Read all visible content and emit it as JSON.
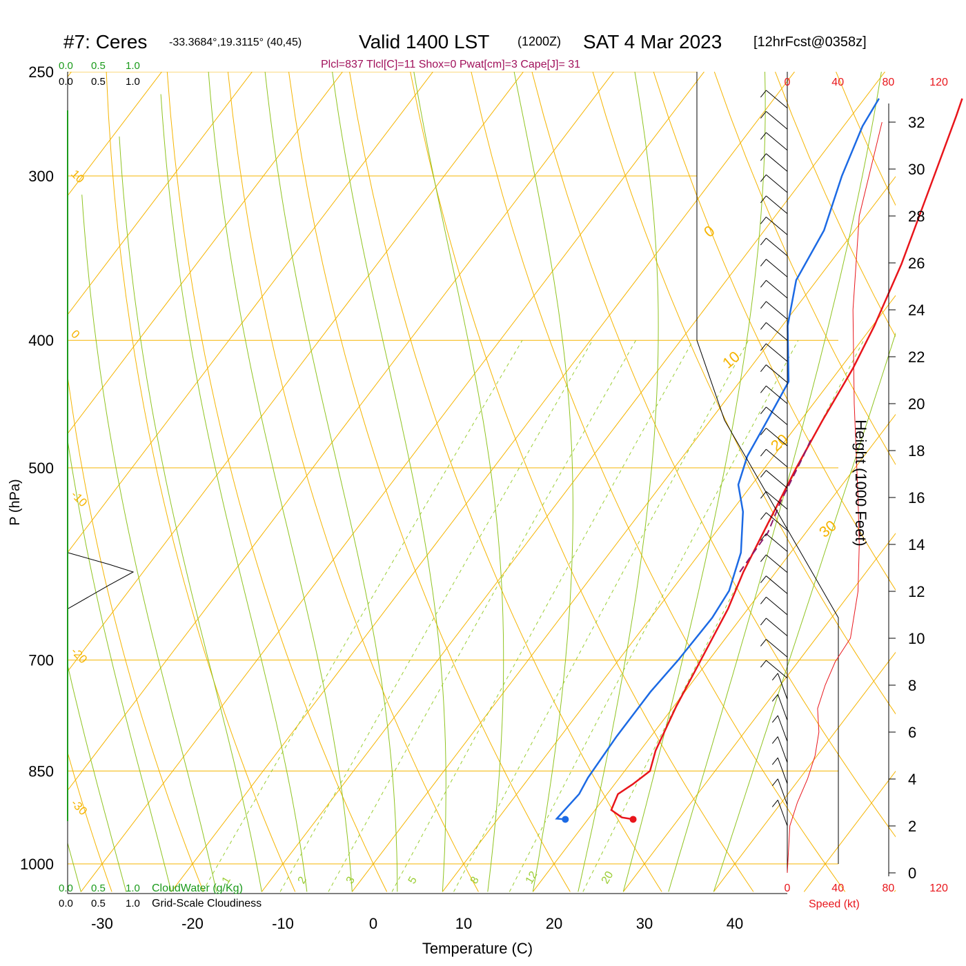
{
  "header": {
    "station": "#7: Ceres",
    "coords": "-33.3684°,19.3115° (40,45)",
    "valid": "Valid 1400 LST",
    "utc": "(1200Z)",
    "date": "SAT 4 Mar 2023",
    "forecast": "[12hrFcst@0358z]",
    "indices": "Plcl=837 Tlcl[C]=11 Shox=0 Pwat[cm]=3 Cape[J]= 31"
  },
  "cloud_scale": {
    "labels": [
      "0.0",
      "0.5",
      "1.0"
    ],
    "water_label": "CloudWater (g/Kg)",
    "cloudiness_label": "Grid-Scale Cloudiness"
  },
  "axes": {
    "ylabel": "P (hPa)",
    "xlabel": "Temperature (C)",
    "height_label": "Height (1000 Feet)",
    "speed_label": "Speed (kt)",
    "pressure_ticks": [
      "250",
      "300",
      "400",
      "500",
      "700",
      "850",
      "1000"
    ],
    "temp_ticks": [
      "-30",
      "-20",
      "-10",
      "0",
      "10",
      "20",
      "30",
      "40"
    ],
    "height_ticks": [
      "0",
      "2",
      "4",
      "6",
      "8",
      "10",
      "12",
      "14",
      "16",
      "18",
      "20",
      "22",
      "24",
      "26",
      "28",
      "30",
      "32"
    ],
    "speed_ticks": [
      "0",
      "40",
      "80",
      "120"
    ],
    "theta_labels": [
      "-30",
      "-20",
      "-10",
      "0",
      "10"
    ],
    "thetae_labels": [
      "0",
      "10",
      "20",
      "30"
    ],
    "mixing_labels": [
      "1",
      "2",
      "3",
      "5",
      "8",
      "12",
      "20"
    ]
  },
  "colors": {
    "temperature": "#e8151b",
    "dewpoint": "#1c6ae4",
    "parcel": "#8b1a6b",
    "isotherm_grid": "#f5b400",
    "dry_adiabat": "#8fc31f",
    "mixing_ratio": "#9acd32",
    "header_indices": "#a0105a",
    "cloud_scale": "#1a9a1a",
    "speed": "#e8151b"
  },
  "chart_data": {
    "type": "line",
    "title": "#7: Ceres Valid 1400 LST (1200Z) SAT 4 Mar 2023 [12hrFcst@0358z]",
    "xlabel": "Temperature (C)",
    "ylabel": "P (hPa)",
    "xlim": [
      -35,
      45
    ],
    "ylim": [
      1000,
      250
    ],
    "y_scale": "log",
    "skewed": true,
    "series": [
      {
        "role": "temperature",
        "points": [
          [
            925,
            25.0
          ],
          [
            922,
            23.6
          ],
          [
            910,
            21.8
          ],
          [
            885,
            21.2
          ],
          [
            870,
            22.0
          ],
          [
            850,
            22.8
          ],
          [
            820,
            21.7
          ],
          [
            760,
            20.3
          ],
          [
            700,
            19.1
          ],
          [
            640,
            17.8
          ],
          [
            600,
            16.4
          ],
          [
            550,
            15.0
          ],
          [
            500,
            13.5
          ],
          [
            460,
            12.4
          ],
          [
            420,
            11.4
          ],
          [
            390,
            10.2
          ],
          [
            350,
            8.0
          ],
          [
            300,
            4.2
          ],
          [
            270,
            1.6
          ],
          [
            262,
            0.8
          ]
        ]
      },
      {
        "role": "dewpoint",
        "points": [
          [
            925,
            17.5
          ],
          [
            924,
            16.5
          ],
          [
            885,
            16.9
          ],
          [
            860,
            16.5
          ],
          [
            800,
            16.2
          ],
          [
            740,
            16.2
          ],
          [
            700,
            16.6
          ],
          [
            650,
            16.8
          ],
          [
            620,
            16.4
          ],
          [
            580,
            14.5
          ],
          [
            540,
            11.3
          ],
          [
            515,
            8.5
          ],
          [
            490,
            7.1
          ],
          [
            460,
            6.3
          ],
          [
            430,
            5.4
          ],
          [
            390,
            0.6
          ],
          [
            360,
            -2.3
          ],
          [
            330,
            -3.4
          ],
          [
            300,
            -6.0
          ],
          [
            275,
            -7.9
          ],
          [
            262,
            -8.4
          ]
        ]
      },
      {
        "role": "parcel",
        "points": [
          [
            600,
            16.0
          ],
          [
            560,
            15.8
          ],
          [
            530,
            14.6
          ],
          [
            490,
            13.3
          ],
          [
            475,
            12.7
          ]
        ]
      }
    ],
    "wind_speed_profile_kt": [
      [
        0,
        0
      ],
      [
        2,
        2
      ],
      [
        3,
        8
      ],
      [
        4,
        16
      ],
      [
        5,
        22
      ],
      [
        6,
        25
      ],
      [
        7,
        24
      ],
      [
        8,
        30
      ],
      [
        9,
        38
      ],
      [
        10,
        50
      ],
      [
        12,
        56
      ],
      [
        14,
        57
      ],
      [
        16,
        56
      ],
      [
        20,
        53
      ],
      [
        24,
        52
      ],
      [
        28,
        57
      ],
      [
        32,
        75
      ]
    ],
    "cloud_water_profile": [
      [
        640,
        0.0
      ],
      [
        614,
        0.6
      ],
      [
        600,
        0.95
      ],
      [
        592,
        0.6
      ],
      [
        580,
        0.0
      ]
    ]
  }
}
